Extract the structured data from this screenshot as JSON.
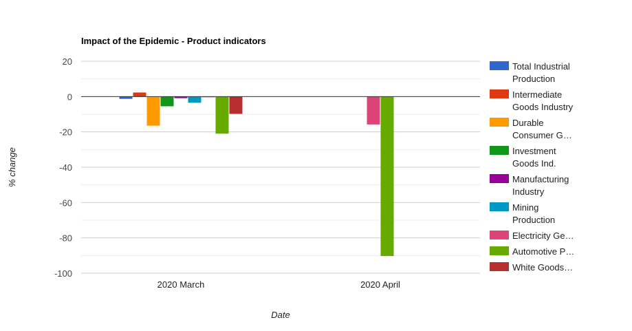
{
  "chart_data": {
    "type": "bar",
    "title": "Impact of the Epidemic - Product indicators",
    "xlabel": "Date",
    "ylabel": "% change",
    "ylim": [
      -100,
      20
    ],
    "yticks": [
      20,
      0,
      -20,
      -40,
      -60,
      -80,
      -100
    ],
    "grid": true,
    "legend_position": "right",
    "categories": [
      "2020 March",
      "2020 April"
    ],
    "series": [
      {
        "name": "Total Industrial Production",
        "legend_lines": [
          "Total Industrial",
          "Production"
        ],
        "color": "#3366cc",
        "values": [
          -1.3,
          null
        ]
      },
      {
        "name": "Intermediate Goods Industry",
        "legend_lines": [
          "Intermediate",
          "Goods Industry"
        ],
        "color": "#dc3912",
        "values": [
          2.3,
          null
        ]
      },
      {
        "name": "Durable Consumer G…",
        "legend_lines": [
          "Durable",
          "Consumer G…"
        ],
        "color": "#ff9900",
        "values": [
          -16.5,
          null
        ]
      },
      {
        "name": "Investment Goods Ind.",
        "legend_lines": [
          "Investment",
          "Goods Ind."
        ],
        "color": "#109618",
        "values": [
          -5.5,
          null
        ]
      },
      {
        "name": "Manufacturing Industry",
        "legend_lines": [
          "Manufacturing",
          "Industry"
        ],
        "color": "#990099",
        "values": [
          -0.9,
          null
        ]
      },
      {
        "name": "Mining Production",
        "legend_lines": [
          "Mining",
          "Production"
        ],
        "color": "#0099c6",
        "values": [
          -3.5,
          null
        ]
      },
      {
        "name": "Electricity Ge…",
        "legend_lines": [
          "Electricity Ge…"
        ],
        "color": "#dd4477",
        "values": [
          -0.4,
          -15.8
        ]
      },
      {
        "name": "Automotive P…",
        "legend_lines": [
          "Automotive P…"
        ],
        "color": "#66aa00",
        "values": [
          -21,
          -90.3
        ]
      },
      {
        "name": "White Goods…",
        "legend_lines": [
          "White Goods…"
        ],
        "color": "#b82e2e",
        "values": [
          -9.8,
          null
        ]
      }
    ]
  }
}
